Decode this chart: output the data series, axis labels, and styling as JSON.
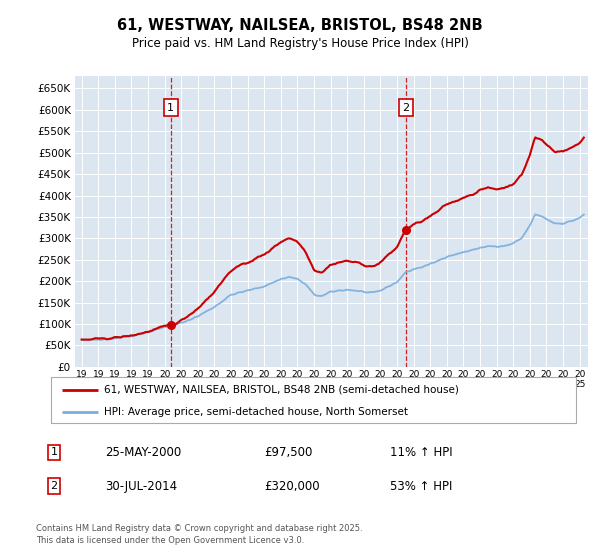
{
  "title_line1": "61, WESTWAY, NAILSEA, BRISTOL, BS48 2NB",
  "title_line2": "Price paid vs. HM Land Registry's House Price Index (HPI)",
  "plot_bg_color": "#dce6f1",
  "grid_color": "#ffffff",
  "sale1_date_label": "25-MAY-2000",
  "sale1_price": 97500,
  "sale1_pct": "11% ↑ HPI",
  "sale2_date_label": "30-JUL-2014",
  "sale2_price": 320000,
  "sale2_pct": "53% ↑ HPI",
  "legend_label1": "61, WESTWAY, NAILSEA, BRISTOL, BS48 2NB (semi-detached house)",
  "legend_label2": "HPI: Average price, semi-detached house, North Somerset",
  "footer": "Contains HM Land Registry data © Crown copyright and database right 2025.\nThis data is licensed under the Open Government Licence v3.0.",
  "line1_color": "#cc0000",
  "line2_color": "#7aaddc",
  "ylim": [
    0,
    680000
  ],
  "yticks": [
    0,
    50000,
    100000,
    150000,
    200000,
    250000,
    300000,
    350000,
    400000,
    450000,
    500000,
    550000,
    600000,
    650000
  ],
  "sale1_x": 2000.37,
  "sale2_x": 2014.54,
  "sale1_marker_price": 97500,
  "sale2_marker_price": 320000
}
